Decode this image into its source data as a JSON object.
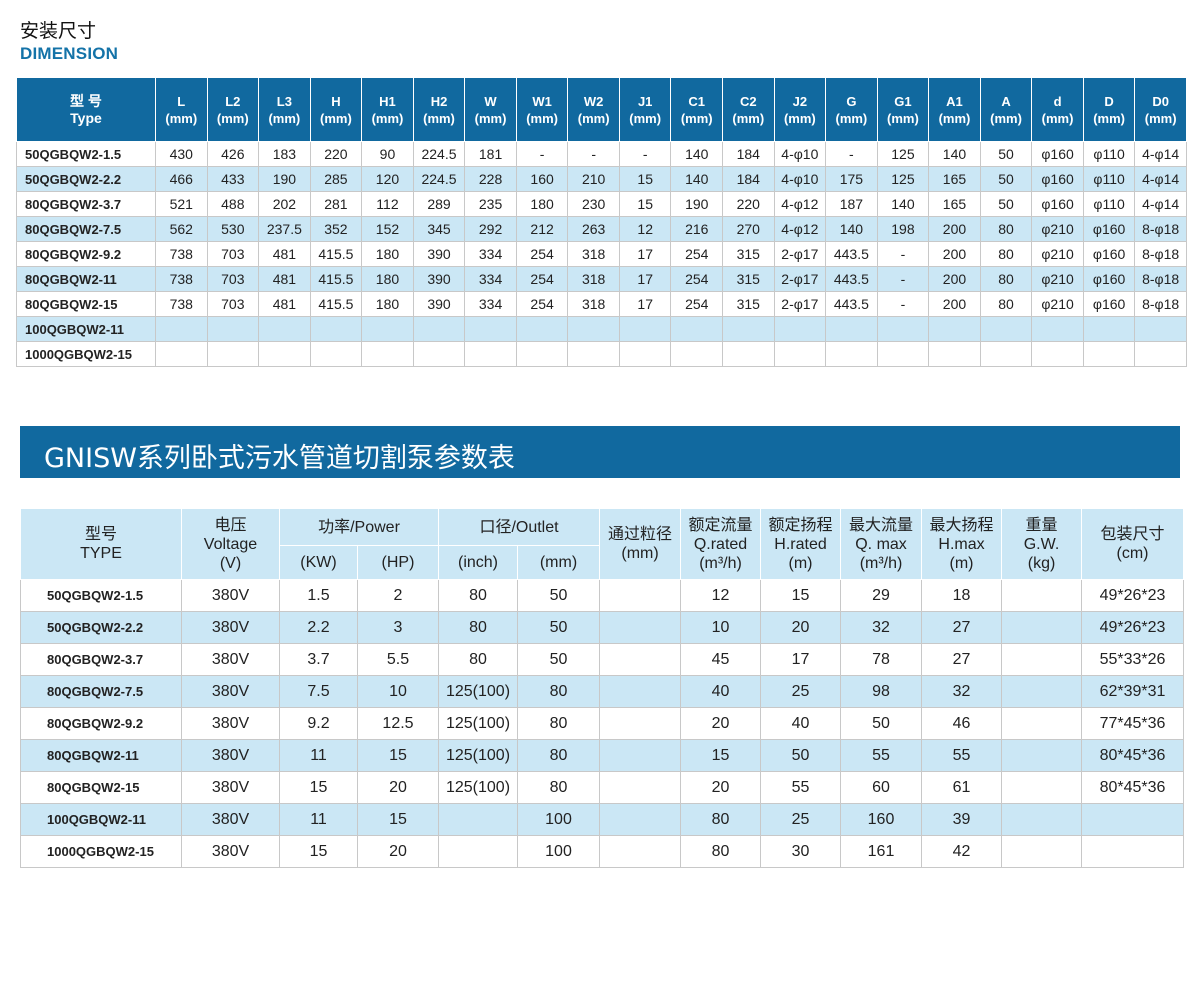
{
  "dimension": {
    "title": "安装尺寸",
    "subtitle": "DIMENSION",
    "type_header": [
      "型 号",
      "Type"
    ],
    "columns": [
      {
        "name": "L",
        "unit": "(mm)"
      },
      {
        "name": "L2",
        "unit": "(mm)"
      },
      {
        "name": "L3",
        "unit": "(mm)"
      },
      {
        "name": "H",
        "unit": "(mm)"
      },
      {
        "name": "H1",
        "unit": "(mm)"
      },
      {
        "name": "H2",
        "unit": "(mm)"
      },
      {
        "name": "W",
        "unit": "(mm)"
      },
      {
        "name": "W1",
        "unit": "(mm)"
      },
      {
        "name": "W2",
        "unit": "(mm)"
      },
      {
        "name": "J1",
        "unit": "(mm)"
      },
      {
        "name": "C1",
        "unit": "(mm)"
      },
      {
        "name": "C2",
        "unit": "(mm)"
      },
      {
        "name": "J2",
        "unit": "(mm)"
      },
      {
        "name": "G",
        "unit": "(mm)"
      },
      {
        "name": "G1",
        "unit": "(mm)"
      },
      {
        "name": "A1",
        "unit": "(mm)"
      },
      {
        "name": "A",
        "unit": "(mm)"
      },
      {
        "name": "d",
        "unit": "(mm)"
      },
      {
        "name": "D",
        "unit": "(mm)"
      },
      {
        "name": "D0",
        "unit": "(mm)"
      }
    ],
    "rows": [
      {
        "type": "50QGBQW2-1.5",
        "values": [
          "430",
          "426",
          "183",
          "220",
          "90",
          "224.5",
          "181",
          "-",
          "-",
          "-",
          "140",
          "184",
          "4-φ10",
          "-",
          "125",
          "140",
          "50",
          "φ160",
          "φ110",
          "4-φ14"
        ]
      },
      {
        "type": "50QGBQW2-2.2",
        "values": [
          "466",
          "433",
          "190",
          "285",
          "120",
          "224.5",
          "228",
          "160",
          "210",
          "15",
          "140",
          "184",
          "4-φ10",
          "175",
          "125",
          "165",
          "50",
          "φ160",
          "φ110",
          "4-φ14"
        ]
      },
      {
        "type": "80QGBQW2-3.7",
        "values": [
          "521",
          "488",
          "202",
          "281",
          "112",
          "289",
          "235",
          "180",
          "230",
          "15",
          "190",
          "220",
          "4-φ12",
          "187",
          "140",
          "165",
          "50",
          "φ160",
          "φ110",
          "4-φ14"
        ]
      },
      {
        "type": "80QGBQW2-7.5",
        "values": [
          "562",
          "530",
          "237.5",
          "352",
          "152",
          "345",
          "292",
          "212",
          "263",
          "12",
          "216",
          "270",
          "4-φ12",
          "140",
          "198",
          "200",
          "80",
          "φ210",
          "φ160",
          "8-φ18"
        ]
      },
      {
        "type": "80QGBQW2-9.2",
        "values": [
          "738",
          "703",
          "481",
          "415.5",
          "180",
          "390",
          "334",
          "254",
          "318",
          "17",
          "254",
          "315",
          "2-φ17",
          "443.5",
          "-",
          "200",
          "80",
          "φ210",
          "φ160",
          "8-φ18"
        ]
      },
      {
        "type": "80QGBQW2-11",
        "values": [
          "738",
          "703",
          "481",
          "415.5",
          "180",
          "390",
          "334",
          "254",
          "318",
          "17",
          "254",
          "315",
          "2-φ17",
          "443.5",
          "-",
          "200",
          "80",
          "φ210",
          "φ160",
          "8-φ18"
        ]
      },
      {
        "type": "80QGBQW2-15",
        "values": [
          "738",
          "703",
          "481",
          "415.5",
          "180",
          "390",
          "334",
          "254",
          "318",
          "17",
          "254",
          "315",
          "2-φ17",
          "443.5",
          "-",
          "200",
          "80",
          "φ210",
          "φ160",
          "8-φ18"
        ]
      },
      {
        "type": "100QGBQW2-11",
        "values": [
          "",
          "",
          "",
          "",
          "",
          "",
          "",
          "",
          "",
          "",
          "",
          "",
          "",
          "",
          "",
          "",
          "",
          "",
          "",
          ""
        ]
      },
      {
        "type": "1000QGBQW2-15",
        "values": [
          "",
          "",
          "",
          "",
          "",
          "",
          "",
          "",
          "",
          "",
          "",
          "",
          "",
          "",
          "",
          "",
          "",
          "",
          "",
          ""
        ]
      }
    ]
  },
  "params": {
    "banner_title": "GNISW系列卧式污水管道切割泵参数表",
    "headers": {
      "type": [
        "型号",
        "TYPE"
      ],
      "voltage": [
        "电压",
        "Voltage",
        "(V)"
      ],
      "power": "功率/Power",
      "power_kw": "(KW)",
      "power_hp": "(HP)",
      "outlet": "口径/Outlet",
      "outlet_inch": "(inch)",
      "outlet_mm": "(mm)",
      "passage": [
        "通过粒径",
        "(mm)"
      ],
      "q_rated": [
        "额定流量",
        "Q.rated",
        "(m³/h)"
      ],
      "h_rated": [
        "额定扬程",
        "H.rated",
        "(m)"
      ],
      "q_max": [
        "最大流量",
        "Q. max",
        "(m³/h)"
      ],
      "h_max": [
        "最大扬程",
        "H.max",
        "(m)"
      ],
      "weight": [
        "重量",
        "G.W.",
        "(kg)"
      ],
      "package": [
        "包装尺寸",
        "(cm)"
      ]
    },
    "rows": [
      {
        "type": "50QGBQW2-1.5",
        "values": [
          "380V",
          "1.5",
          "2",
          "80",
          "50",
          "",
          "12",
          "15",
          "29",
          "18",
          "",
          "49*26*23"
        ]
      },
      {
        "type": "50QGBQW2-2.2",
        "values": [
          "380V",
          "2.2",
          "3",
          "80",
          "50",
          "",
          "10",
          "20",
          "32",
          "27",
          "",
          "49*26*23"
        ]
      },
      {
        "type": "80QGBQW2-3.7",
        "values": [
          "380V",
          "3.7",
          "5.5",
          "80",
          "50",
          "",
          "45",
          "17",
          "78",
          "27",
          "",
          "55*33*26"
        ]
      },
      {
        "type": "80QGBQW2-7.5",
        "values": [
          "380V",
          "7.5",
          "10",
          "125(100)",
          "80",
          "",
          "40",
          "25",
          "98",
          "32",
          "",
          "62*39*31"
        ]
      },
      {
        "type": "80QGBQW2-9.2",
        "values": [
          "380V",
          "9.2",
          "12.5",
          "125(100)",
          "80",
          "",
          "20",
          "40",
          "50",
          "46",
          "",
          "77*45*36"
        ]
      },
      {
        "type": "80QGBQW2-11",
        "values": [
          "380V",
          "11",
          "15",
          "125(100)",
          "80",
          "",
          "15",
          "50",
          "55",
          "55",
          "",
          "80*45*36"
        ]
      },
      {
        "type": "80QGBQW2-15",
        "values": [
          "380V",
          "15",
          "20",
          "125(100)",
          "80",
          "",
          "20",
          "55",
          "60",
          "61",
          "",
          "80*45*36"
        ]
      },
      {
        "type": "100QGBQW2-11",
        "values": [
          "380V",
          "11",
          "15",
          "",
          "100",
          "",
          "80",
          "25",
          "160",
          "39",
          "",
          ""
        ]
      },
      {
        "type": "1000QGBQW2-15",
        "values": [
          "380V",
          "15",
          "20",
          "",
          "100",
          "",
          "80",
          "30",
          "161",
          "42",
          "",
          ""
        ]
      }
    ]
  }
}
